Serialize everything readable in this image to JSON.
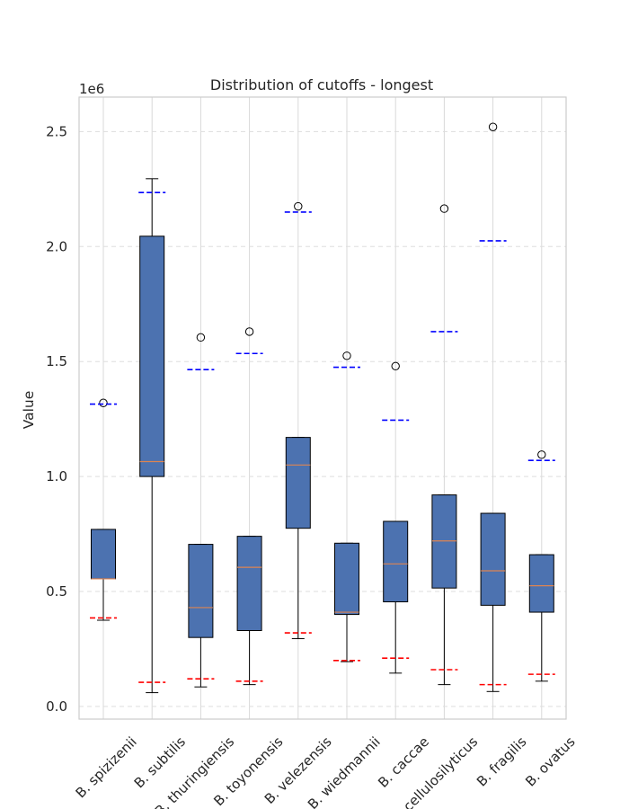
{
  "chart_data": {
    "type": "boxplot",
    "title": "Distribution of cutoffs - longest",
    "ylabel": "Value",
    "xlabel": "",
    "y_scale_label": "1e6",
    "ylim": [
      -55000,
      2650000
    ],
    "yticks": [
      0.0,
      0.5,
      1.0,
      1.5,
      2.0,
      2.5
    ],
    "ytick_labels": [
      "0.0",
      "0.5",
      "1.0",
      "1.5",
      "2.0",
      "2.5"
    ],
    "grid": true,
    "colors": {
      "box": "#4c72b0",
      "median": "#dd8452",
      "upper_marker": "#0000ff",
      "lower_marker": "#ff0000",
      "grid": "#dddddd",
      "frame": "#cccccc"
    },
    "categories": [
      "B. spizizenii",
      "B. subtilis",
      "B. thuringiensis",
      "B. toyonensis",
      "B. velezensis",
      "B. wiedmannii",
      "B. caccae",
      "B. cellulosilyticus",
      "B. fragilis",
      "B. ovatus"
    ],
    "boxes": [
      {
        "whislo": 375000,
        "q1": 555000,
        "med": 555000,
        "q3": 770000,
        "whishi": 770000,
        "fliers": [
          1320000
        ],
        "upper_marker": 1315000,
        "lower_marker": 385000
      },
      {
        "whislo": 60000,
        "q1": 1000000,
        "med": 1065000,
        "q3": 2045000,
        "whishi": 2295000,
        "fliers": [],
        "upper_marker": 2235000,
        "lower_marker": 105000
      },
      {
        "whislo": 85000,
        "q1": 300000,
        "med": 430000,
        "q3": 705000,
        "whishi": 705000,
        "fliers": [
          1605000
        ],
        "upper_marker": 1465000,
        "lower_marker": 120000
      },
      {
        "whislo": 95000,
        "q1": 330000,
        "med": 605000,
        "q3": 740000,
        "whishi": 740000,
        "fliers": [
          1630000
        ],
        "upper_marker": 1535000,
        "lower_marker": 110000
      },
      {
        "whislo": 295000,
        "q1": 775000,
        "med": 1050000,
        "q3": 1170000,
        "whishi": 1170000,
        "fliers": [
          2175000
        ],
        "upper_marker": 2150000,
        "lower_marker": 320000
      },
      {
        "whislo": 195000,
        "q1": 400000,
        "med": 410000,
        "q3": 710000,
        "whishi": 710000,
        "fliers": [
          1525000
        ],
        "upper_marker": 1475000,
        "lower_marker": 200000
      },
      {
        "whislo": 145000,
        "q1": 455000,
        "med": 620000,
        "q3": 805000,
        "whishi": 805000,
        "fliers": [
          1480000
        ],
        "upper_marker": 1245000,
        "lower_marker": 210000
      },
      {
        "whislo": 95000,
        "q1": 515000,
        "med": 720000,
        "q3": 920000,
        "whishi": 920000,
        "fliers": [
          2165000
        ],
        "upper_marker": 1630000,
        "lower_marker": 160000
      },
      {
        "whislo": 65000,
        "q1": 440000,
        "med": 590000,
        "q3": 840000,
        "whishi": 840000,
        "fliers": [
          2520000
        ],
        "upper_marker": 2025000,
        "lower_marker": 95000
      },
      {
        "whislo": 110000,
        "q1": 410000,
        "med": 525000,
        "q3": 660000,
        "whishi": 660000,
        "fliers": [
          1095000
        ],
        "upper_marker": 1070000,
        "lower_marker": 140000
      }
    ]
  }
}
